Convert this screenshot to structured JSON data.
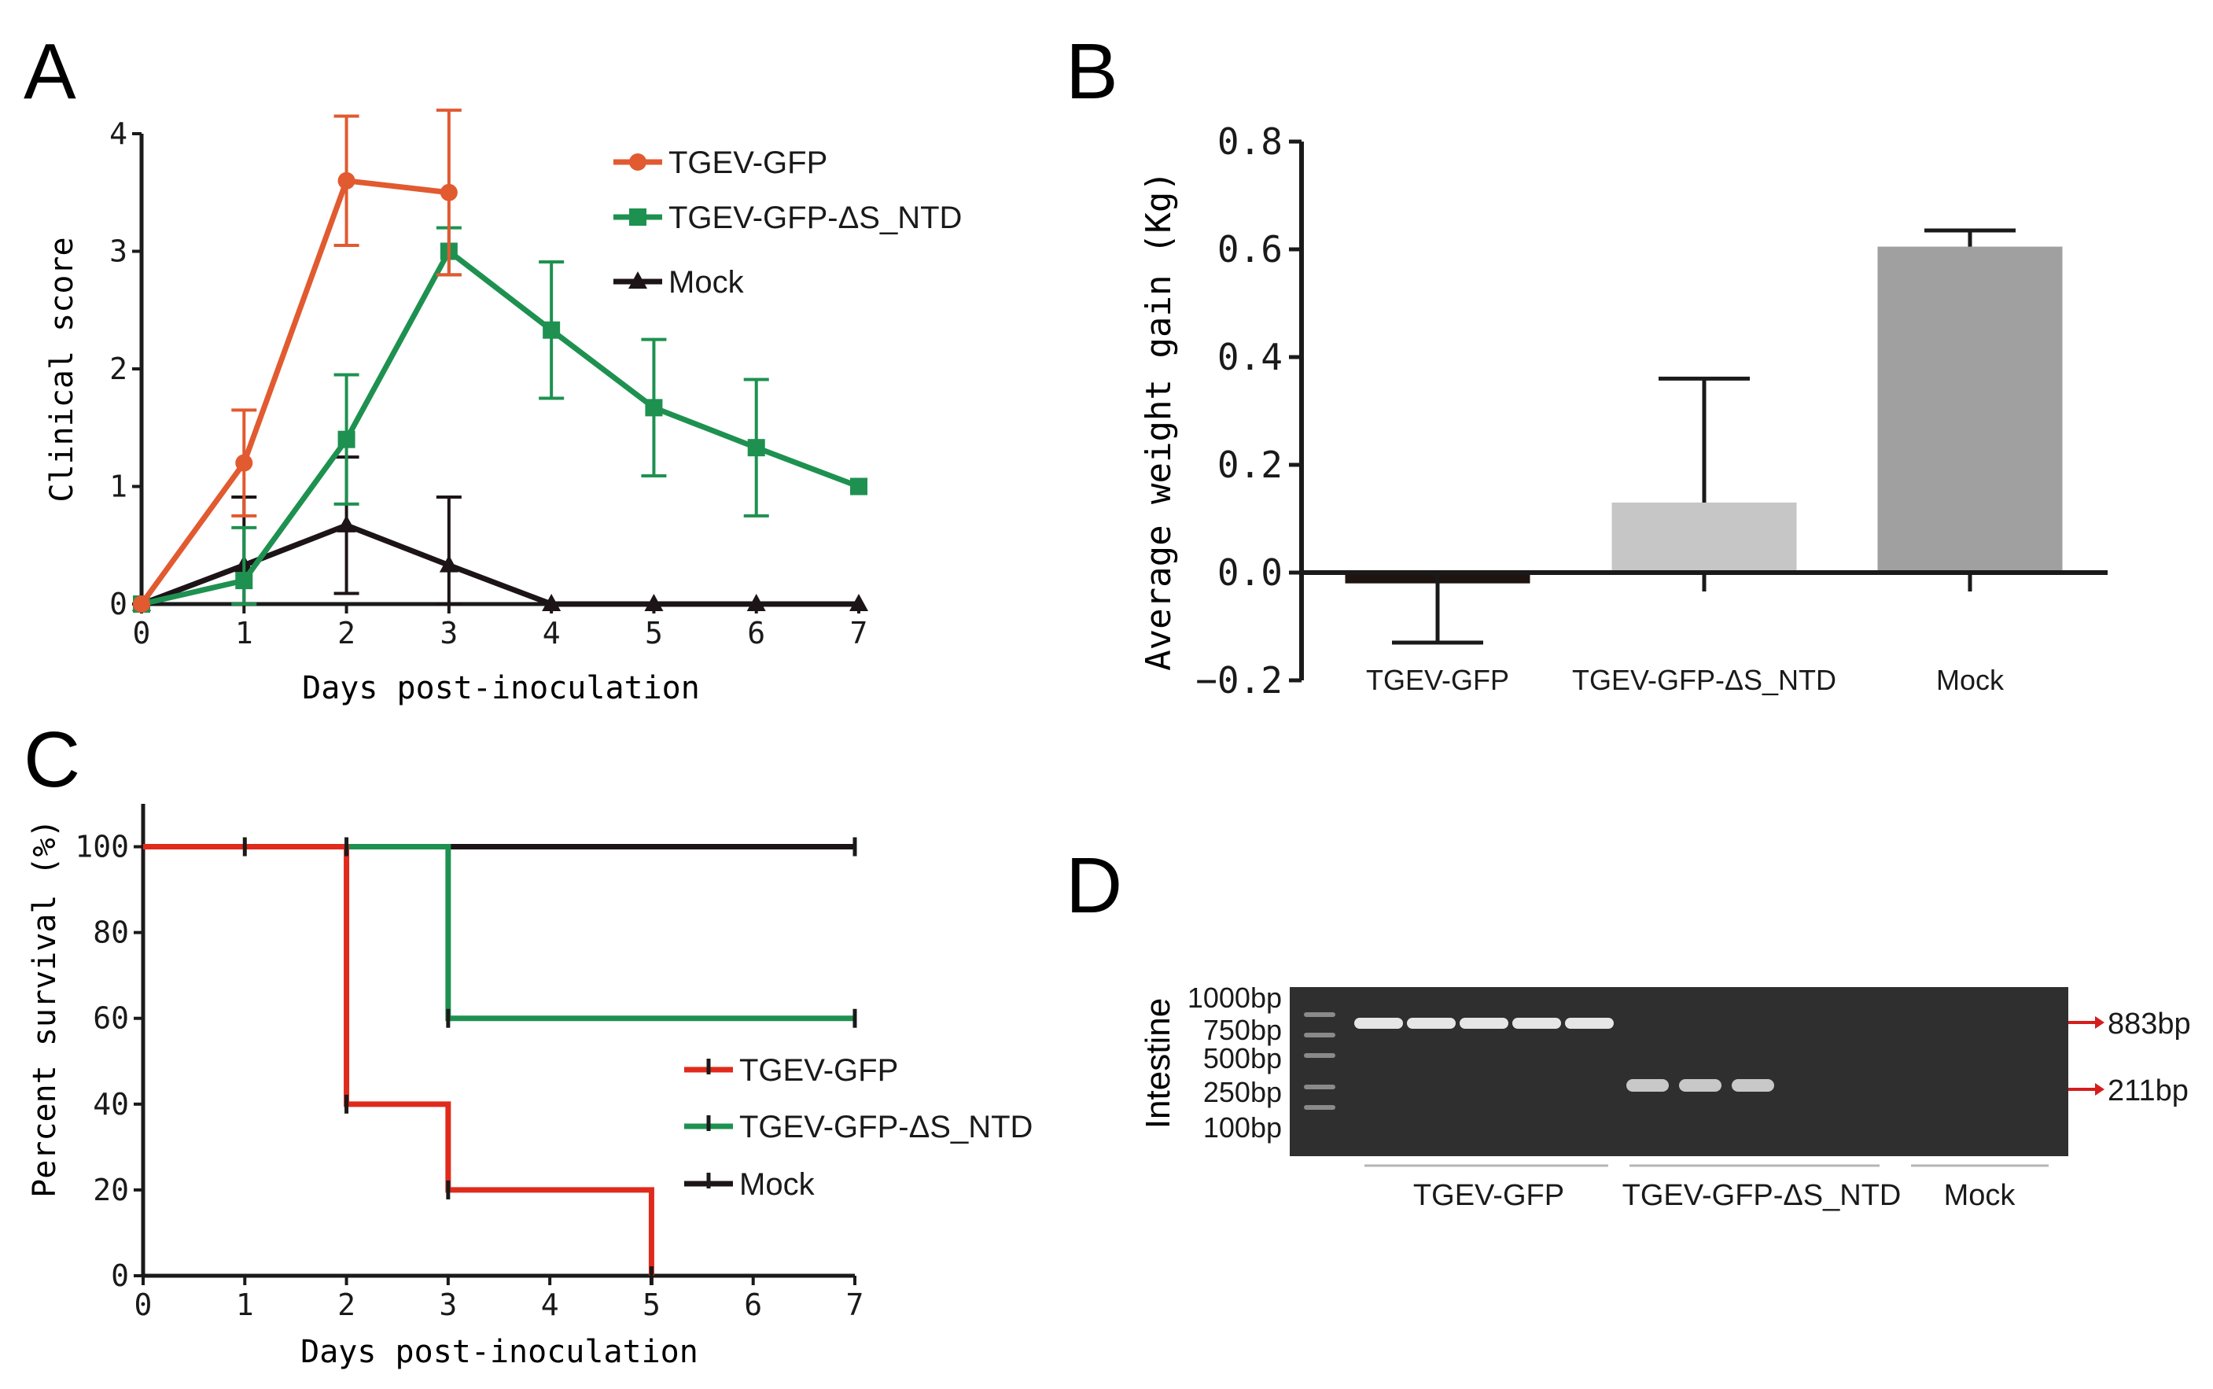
{
  "figure": {
    "panel_labels": [
      "A",
      "B",
      "C",
      "D"
    ]
  },
  "chart_data": [
    {
      "panel": "A",
      "type": "line",
      "title": "",
      "xlabel": "Days post-inoculation",
      "ylabel": "Clinical score",
      "xlim": [
        0,
        7
      ],
      "ylim": [
        0,
        4
      ],
      "xticks": [
        "0",
        "1",
        "2",
        "3",
        "4",
        "5",
        "6",
        "7"
      ],
      "yticks": [
        "0",
        "1",
        "2",
        "3",
        "4"
      ],
      "legend_position": "top-right",
      "series": [
        {
          "name": "TGEV-GFP",
          "color": "#e15a30",
          "marker": "circle",
          "x": [
            0,
            1,
            2,
            3
          ],
          "y": [
            0,
            1.2,
            3.6,
            3.5
          ],
          "err": [
            0,
            0.45,
            0.55,
            0.7
          ]
        },
        {
          "name": "TGEV-GFP-ΔS_NTD",
          "color": "#1e9150",
          "marker": "square",
          "x": [
            0,
            1,
            2,
            3,
            4,
            5,
            6,
            7
          ],
          "y": [
            0,
            0.2,
            1.4,
            3.0,
            2.33,
            1.67,
            1.33,
            1.0
          ],
          "err": [
            0,
            0.45,
            0.55,
            0.2,
            0.58,
            0.58,
            0.58,
            0
          ]
        },
        {
          "name": "Mock",
          "color": "#1c1416",
          "marker": "triangle",
          "x": [
            0,
            1,
            2,
            3,
            4,
            5,
            6,
            7
          ],
          "y": [
            0,
            0.33,
            0.67,
            0.33,
            0,
            0,
            0,
            0
          ],
          "err": [
            0,
            0.58,
            0.58,
            0.58,
            0,
            0,
            0,
            0
          ]
        }
      ]
    },
    {
      "panel": "B",
      "type": "bar",
      "title": "",
      "xlabel": "",
      "ylabel": "Average weight gain (Kg)",
      "categories": [
        "TGEV-GFP",
        "TGEV-GFP-ΔS_NTD",
        "Mock"
      ],
      "values": [
        -0.02,
        0.13,
        0.605
      ],
      "err": [
        0.11,
        0.23,
        0.03
      ],
      "colors": [
        "#1f1410",
        "#c6c6c6",
        "#a0a0a0"
      ],
      "ylim": [
        -0.2,
        0.8
      ],
      "yticks": [
        "−0.2",
        "0.0",
        "0.2",
        "0.4",
        "0.6",
        "0.8"
      ]
    },
    {
      "panel": "C",
      "type": "line",
      "subtype": "survival",
      "title": "",
      "xlabel": "Days post-inoculation",
      "ylabel": "Percent survival (%)",
      "xlim": [
        0,
        7
      ],
      "ylim": [
        0,
        110
      ],
      "xticks": [
        "0",
        "1",
        "2",
        "3",
        "4",
        "5",
        "6",
        "7"
      ],
      "yticks": [
        "0",
        "20",
        "40",
        "60",
        "80",
        "100"
      ],
      "legend_position": "center-right",
      "series": [
        {
          "name": "TGEV-GFP",
          "color": "#e02a1c",
          "x": [
            0,
            2,
            3,
            5
          ],
          "y": [
            100,
            40,
            20,
            0
          ]
        },
        {
          "name": "TGEV-GFP-ΔS_NTD",
          "color": "#1e9150",
          "x": [
            0,
            3,
            7
          ],
          "y": [
            100,
            60,
            60
          ]
        },
        {
          "name": "Mock",
          "color": "#1c1416",
          "x": [
            0,
            7
          ],
          "y": [
            100,
            100
          ]
        }
      ]
    },
    {
      "panel": "D",
      "type": "gel",
      "tissue_label": "Intestine",
      "ladder_labels": [
        "1000bp",
        "750bp",
        "500bp",
        "250bp",
        "100bp"
      ],
      "band_labels": [
        "883bp",
        "211bp"
      ],
      "groups": [
        {
          "name": "TGEV-GFP",
          "lanes": 5,
          "band": "883bp"
        },
        {
          "name": "TGEV-GFP-ΔS_NTD",
          "lanes": 5,
          "bands_present": 3,
          "band": "211bp"
        },
        {
          "name": "Mock",
          "lanes": 3,
          "band": ""
        }
      ]
    }
  ]
}
